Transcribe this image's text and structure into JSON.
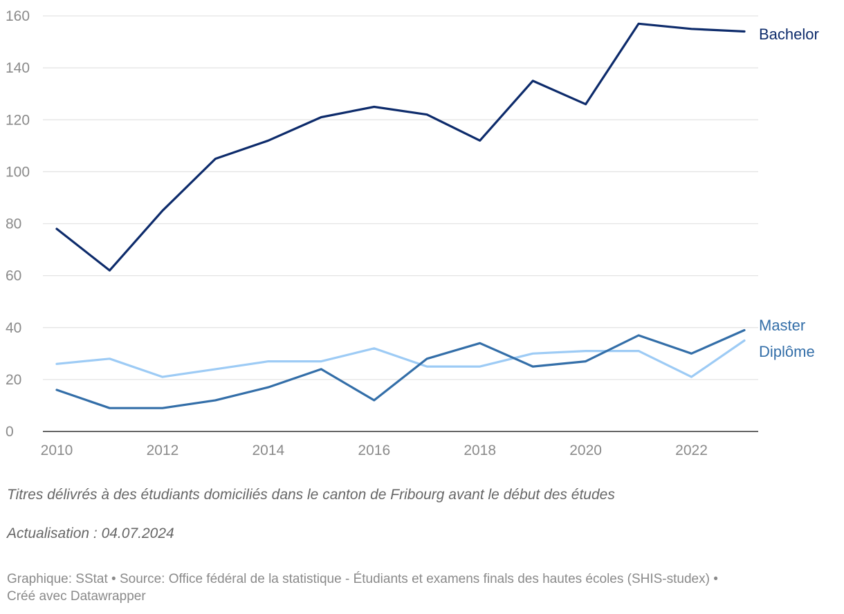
{
  "chart_data": {
    "type": "line",
    "x": [
      2010,
      2011,
      2012,
      2013,
      2014,
      2015,
      2016,
      2017,
      2018,
      2019,
      2020,
      2021,
      2022,
      2023
    ],
    "x_ticks": [
      "2010",
      "2012",
      "2014",
      "2016",
      "2018",
      "2020",
      "2022"
    ],
    "y_ticks": [
      "0",
      "20",
      "40",
      "60",
      "80",
      "100",
      "120",
      "140",
      "160"
    ],
    "ylim": [
      0,
      160
    ],
    "xlim": [
      2010,
      2023
    ],
    "grid": true,
    "legend": "direct labels at right end of lines",
    "series": [
      {
        "name": "Bachelor",
        "color": "#0d2b6b",
        "values": [
          78,
          62,
          85,
          105,
          112,
          121,
          125,
          122,
          112,
          135,
          126,
          157,
          155,
          154
        ]
      },
      {
        "name": "Master",
        "color": "#336ea8",
        "values": [
          16,
          9,
          9,
          12,
          17,
          24,
          12,
          28,
          34,
          25,
          27,
          37,
          30,
          39
        ]
      },
      {
        "name": "Diplôme",
        "color": "#9dcbf5",
        "label_color": "#336ea8",
        "values": [
          26,
          28,
          21,
          24,
          27,
          27,
          32,
          25,
          25,
          30,
          31,
          31,
          21,
          35
        ]
      }
    ]
  },
  "notes": {
    "description": "Titres délivrés à des étudiants domiciliés dans le canton de Fribourg avant le début des études",
    "update": "Actualisation : 04.07.2024"
  },
  "footer": {
    "line1": "Graphique: SStat • Source: Office fédéral de la statistique - Étudiants et examens finals des hautes écoles (SHIS-studex) •",
    "line2": "Créé avec Datawrapper"
  }
}
